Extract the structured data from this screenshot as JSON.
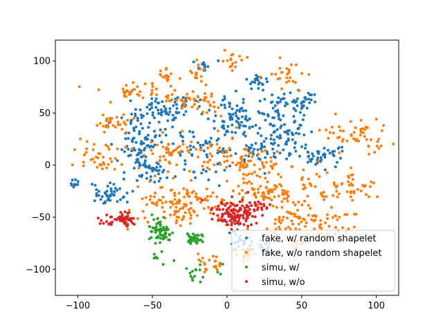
{
  "chart_data": {
    "type": "scatter",
    "title": "",
    "xlabel": "",
    "ylabel": "",
    "xlim": [
      -115,
      115
    ],
    "ylim": [
      -125,
      120
    ],
    "x_ticks": [
      -100,
      -50,
      0,
      50,
      100
    ],
    "y_ticks": [
      -100,
      -50,
      0,
      50,
      100
    ],
    "x_tick_labels": [
      "−100",
      "−50",
      "0",
      "50",
      "100"
    ],
    "y_tick_labels": [
      "−100",
      "−50",
      "0",
      "50",
      "100"
    ],
    "grid": false,
    "legend_placement": "lower-right",
    "series": [
      {
        "name": "fake, w/ random shapelet",
        "color": "#1f77b4",
        "clusters": [
          {
            "cx": -102,
            "cy": -18,
            "sx": 2,
            "sy": 3,
            "n": 10
          },
          {
            "cx": -80,
            "cy": -28,
            "sx": 7,
            "sy": 6,
            "n": 45
          },
          {
            "cx": -58,
            "cy": 30,
            "sx": 8,
            "sy": 12,
            "n": 80
          },
          {
            "cx": -40,
            "cy": 55,
            "sx": 10,
            "sy": 5,
            "n": 55
          },
          {
            "cx": -52,
            "cy": -5,
            "sx": 6,
            "sy": 6,
            "n": 35
          },
          {
            "cx": -20,
            "cy": 15,
            "sx": 12,
            "sy": 18,
            "n": 70
          },
          {
            "cx": 5,
            "cy": 45,
            "sx": 10,
            "sy": 10,
            "n": 80
          },
          {
            "cx": 20,
            "cy": 80,
            "sx": 4,
            "sy": 4,
            "n": 22
          },
          {
            "cx": -15,
            "cy": 95,
            "sx": 4,
            "sy": 4,
            "n": 14
          },
          {
            "cx": 45,
            "cy": 60,
            "sx": 10,
            "sy": 5,
            "n": 55
          },
          {
            "cx": 38,
            "cy": 30,
            "sx": 8,
            "sy": 12,
            "n": 75
          },
          {
            "cx": 62,
            "cy": 10,
            "sx": 8,
            "sy": 6,
            "n": 40
          },
          {
            "cx": 20,
            "cy": 15,
            "sx": 8,
            "sy": 8,
            "n": 35
          },
          {
            "cx": 8,
            "cy": -75,
            "sx": 5,
            "sy": 6,
            "n": 22
          },
          {
            "cx": 25,
            "cy": -80,
            "sx": 4,
            "sy": 4,
            "n": 15
          },
          {
            "cx": -60,
            "cy": 5,
            "sx": 5,
            "sy": 5,
            "n": 20
          }
        ]
      },
      {
        "name": "fake, w/o random shapelet",
        "color": "#ff7f0e",
        "clusters": [
          {
            "cx": -28,
            "cy": -38,
            "sx": 18,
            "sy": 10,
            "n": 130
          },
          {
            "cx": 30,
            "cy": -25,
            "sx": 14,
            "sy": 10,
            "n": 90
          },
          {
            "cx": 10,
            "cy": 5,
            "sx": 16,
            "sy": 10,
            "n": 90
          },
          {
            "cx": -35,
            "cy": 10,
            "sx": 10,
            "sy": 8,
            "n": 45
          },
          {
            "cx": -85,
            "cy": 8,
            "sx": 10,
            "sy": 7,
            "n": 40
          },
          {
            "cx": -75,
            "cy": 40,
            "sx": 6,
            "sy": 4,
            "n": 30
          },
          {
            "cx": -55,
            "cy": 70,
            "sx": 14,
            "sy": 5,
            "n": 45
          },
          {
            "cx": -40,
            "cy": 85,
            "sx": 3,
            "sy": 5,
            "n": 14
          },
          {
            "cx": -18,
            "cy": 60,
            "sx": 8,
            "sy": 6,
            "n": 40
          },
          {
            "cx": -20,
            "cy": 88,
            "sx": 3,
            "sy": 6,
            "n": 14
          },
          {
            "cx": 5,
            "cy": 100,
            "sx": 4,
            "sy": 5,
            "n": 16
          },
          {
            "cx": 40,
            "cy": 88,
            "sx": 8,
            "sy": 8,
            "n": 26
          },
          {
            "cx": 85,
            "cy": 30,
            "sx": 10,
            "sy": 8,
            "n": 45
          },
          {
            "cx": 80,
            "cy": -20,
            "sx": 10,
            "sy": 7,
            "n": 45
          },
          {
            "cx": 65,
            "cy": -55,
            "sx": 12,
            "sy": 10,
            "n": 55
          },
          {
            "cx": 40,
            "cy": -55,
            "sx": 8,
            "sy": 6,
            "n": 30
          },
          {
            "cx": -10,
            "cy": -95,
            "sx": 6,
            "sy": 5,
            "n": 22
          },
          {
            "cx": 15,
            "cy": -85,
            "sx": 6,
            "sy": 5,
            "n": 20
          },
          {
            "cx": 48,
            "cy": -75,
            "sx": 4,
            "sy": 4,
            "n": 16
          },
          {
            "cx": 100,
            "cy": 15,
            "sx": 3,
            "sy": 5,
            "n": 8
          }
        ]
      },
      {
        "name": "simu, w/",
        "color": "#2ca02c",
        "clusters": [
          {
            "cx": -44,
            "cy": -64,
            "sx": 4,
            "sy": 5,
            "n": 60
          },
          {
            "cx": -22,
            "cy": -70,
            "sx": 3,
            "sy": 2.5,
            "n": 35
          },
          {
            "cx": -20,
            "cy": -105,
            "sx": 7,
            "sy": 6,
            "n": 16
          },
          {
            "cx": -45,
            "cy": -90,
            "sx": 4,
            "sy": 3,
            "n": 8
          }
        ]
      },
      {
        "name": "simu, w/o",
        "color": "#d62728",
        "clusters": [
          {
            "cx": -70,
            "cy": -53,
            "sx": 4,
            "sy": 4,
            "n": 55
          },
          {
            "cx": -84,
            "cy": -53,
            "sx": 2,
            "sy": 2,
            "n": 6
          },
          {
            "cx": 5,
            "cy": -47,
            "sx": 8,
            "sy": 6,
            "n": 120
          },
          {
            "cx": 20,
            "cy": -40,
            "sx": 5,
            "sy": 4,
            "n": 20
          }
        ]
      }
    ]
  }
}
